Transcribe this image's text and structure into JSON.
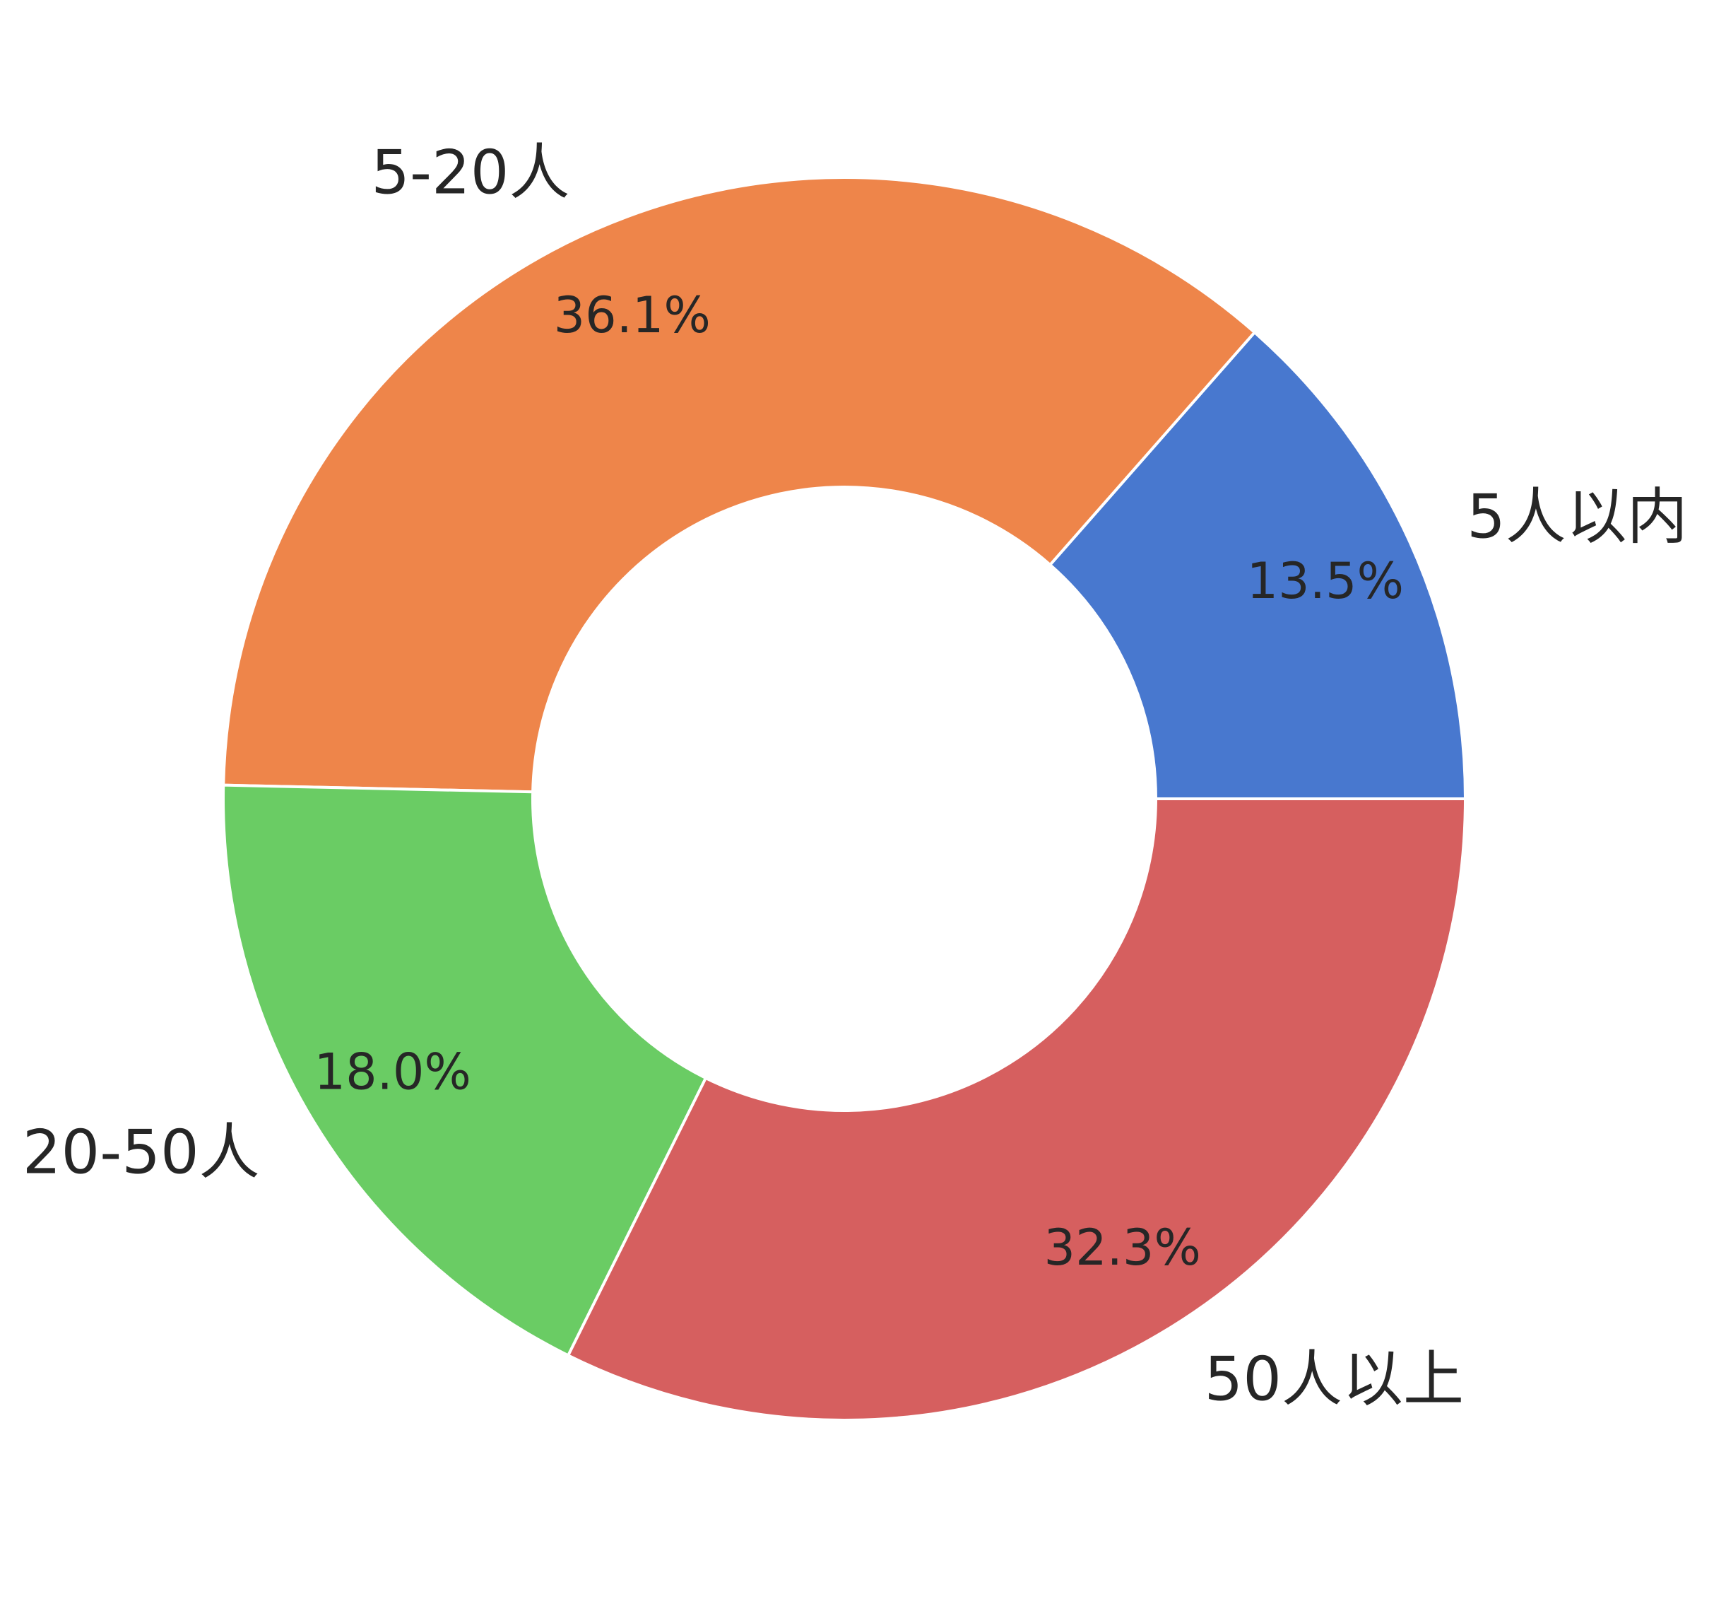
{
  "chart_data": {
    "type": "pie",
    "donut": true,
    "start_angle_deg": 0,
    "direction": "counterclockwise",
    "categories": [
      "5人以内",
      "5-20人",
      "20-50人",
      "50人以上"
    ],
    "values": [
      13.5,
      36.1,
      18.0,
      32.3
    ],
    "value_labels": [
      "13.5%",
      "36.1%",
      "18.0%",
      "32.3%"
    ],
    "colors": [
      "#4878cf",
      "#ee854a",
      "#6acc64",
      "#d65f5f"
    ],
    "title": "",
    "legend": "none"
  }
}
